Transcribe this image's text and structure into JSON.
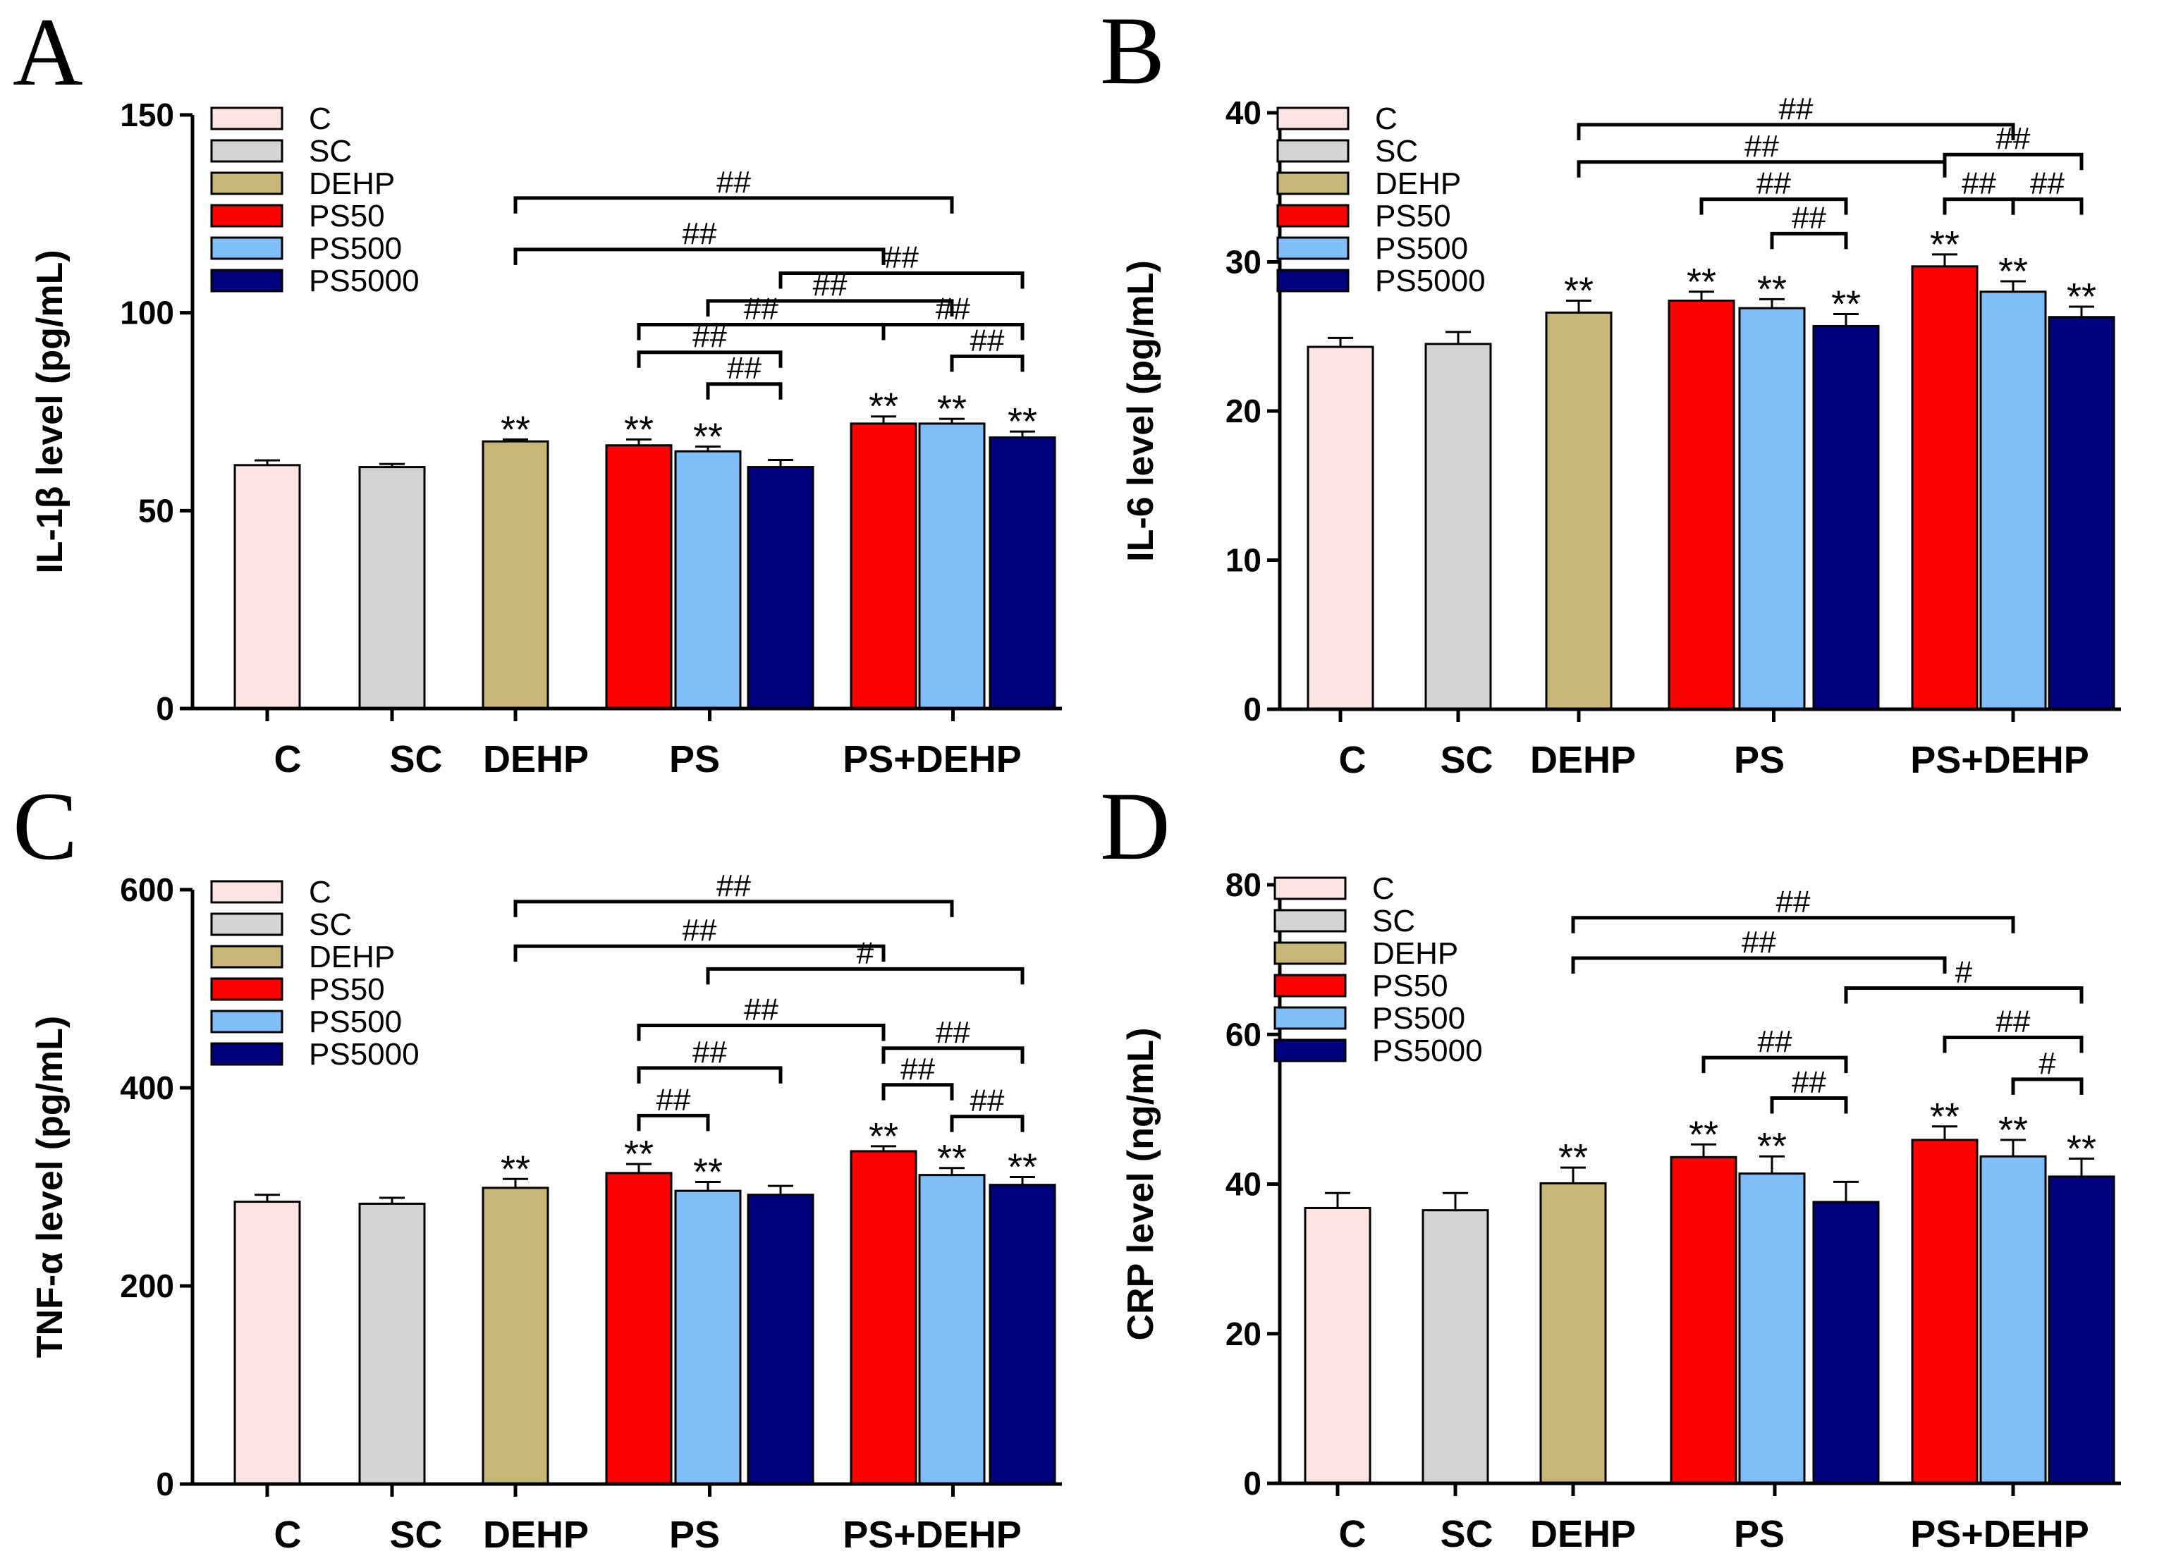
{
  "colors": {
    "C": "#FDE4E4",
    "SC": "#D3D3D3",
    "DEHP": "#C8B679",
    "PS50": "#FF0000",
    "PS500": "#7FBEF8",
    "PS5000": "#00007F"
  },
  "chart_data": [
    {
      "type": "bar",
      "panel": "A",
      "ylabel": "IL-1β level (pg/mL)",
      "ylim": [
        0,
        150
      ],
      "yticks": [
        "0",
        "50",
        "100",
        "150"
      ],
      "series_names": [
        "C",
        "SC",
        "DEHP",
        "PS50",
        "PS500",
        "PS5000"
      ],
      "groups": [
        "C",
        "SC",
        "DEHP",
        "PS",
        "PS+DEHP"
      ],
      "values": [
        61.5,
        61,
        67.5,
        66.5,
        65,
        61,
        72,
        72,
        68.5
      ],
      "errors": [
        1.2,
        0.8,
        0.5,
        1.5,
        1.2,
        1.8,
        1.8,
        1.2,
        1.5
      ],
      "stars": [
        "",
        "",
        "**",
        "**",
        "**",
        "",
        "**",
        "**",
        "**"
      ],
      "brackets": [
        {
          "from": 2,
          "to": 7,
          "level": 129,
          "label": "##"
        },
        {
          "from": 2,
          "to": 6,
          "level": 116,
          "label": "##"
        },
        {
          "from": 5,
          "to": 8,
          "level": 110,
          "label": "##"
        },
        {
          "from": 4,
          "to": 7,
          "level": 103,
          "label": "##"
        },
        {
          "from": 3,
          "to": 6,
          "level": 97,
          "label": "##"
        },
        {
          "from": 6,
          "to": 8,
          "level": 97,
          "label": "##"
        },
        {
          "from": 3,
          "to": 5,
          "level": 90,
          "label": "##"
        },
        {
          "from": 7,
          "to": 8,
          "level": 89,
          "label": "##"
        },
        {
          "from": 4,
          "to": 5,
          "level": 82,
          "label": "##"
        }
      ]
    },
    {
      "type": "bar",
      "panel": "B",
      "ylabel": "IL-6 level (pg/mL)",
      "ylim": [
        0,
        40
      ],
      "yticks": [
        "0",
        "10",
        "20",
        "30",
        "40"
      ],
      "series_names": [
        "C",
        "SC",
        "DEHP",
        "PS50",
        "PS500",
        "PS5000"
      ],
      "groups": [
        "C",
        "SC",
        "DEHP",
        "PS",
        "PS+DEHP"
      ],
      "values": [
        24.3,
        24.5,
        26.6,
        27.4,
        26.9,
        25.7,
        29.7,
        28,
        26.3
      ],
      "errors": [
        0.6,
        0.8,
        0.8,
        0.6,
        0.6,
        0.8,
        0.8,
        0.7,
        0.7
      ],
      "stars": [
        "",
        "",
        "**",
        "**",
        "**",
        "**",
        "**",
        "**",
        "**"
      ],
      "brackets": [
        {
          "from": 2,
          "to": 7,
          "level": 39.2,
          "label": "##"
        },
        {
          "from": 2,
          "to": 6,
          "level": 36.7,
          "label": "##"
        },
        {
          "from": 6,
          "to": 8,
          "level": 37.2,
          "label": "##"
        },
        {
          "from": 3,
          "to": 5,
          "level": 34.2,
          "label": "##"
        },
        {
          "from": 6,
          "to": 7,
          "level": 34.2,
          "label": "##"
        },
        {
          "from": 7,
          "to": 8,
          "level": 34.2,
          "label": "##"
        },
        {
          "from": 4,
          "to": 5,
          "level": 31.9,
          "label": "##"
        }
      ]
    },
    {
      "type": "bar",
      "panel": "C",
      "ylabel": "TNF-α level (pg/mL)",
      "ylim": [
        0,
        600
      ],
      "yticks": [
        "0",
        "200",
        "400",
        "600"
      ],
      "series_names": [
        "C",
        "SC",
        "DEHP",
        "PS50",
        "PS500",
        "PS5000"
      ],
      "groups": [
        "C",
        "SC",
        "DEHP",
        "PS",
        "PS+DEHP"
      ],
      "values": [
        285,
        283,
        299,
        314,
        296,
        292,
        336,
        312,
        302
      ],
      "errors": [
        7,
        6,
        9,
        9,
        9,
        9,
        5,
        7,
        8
      ],
      "stars": [
        "",
        "",
        "**",
        "**",
        "**",
        "",
        "**",
        "**",
        "**"
      ],
      "brackets": [
        {
          "from": 2,
          "to": 7,
          "level": 588,
          "label": "##"
        },
        {
          "from": 2,
          "to": 6,
          "level": 543,
          "label": "##"
        },
        {
          "from": 4,
          "to": 8,
          "level": 520,
          "label": "#"
        },
        {
          "from": 3,
          "to": 6,
          "level": 463,
          "label": "##"
        },
        {
          "from": 6,
          "to": 8,
          "level": 440,
          "label": "##"
        },
        {
          "from": 3,
          "to": 5,
          "level": 420,
          "label": "##"
        },
        {
          "from": 6,
          "to": 7,
          "level": 403,
          "label": "##"
        },
        {
          "from": 3,
          "to": 4,
          "level": 372,
          "label": "##"
        },
        {
          "from": 7,
          "to": 8,
          "level": 371,
          "label": "##"
        }
      ]
    },
    {
      "type": "bar",
      "panel": "D",
      "ylabel": "CRP level (ng/mL)",
      "ylim": [
        0,
        80
      ],
      "yticks": [
        "0",
        "20",
        "40",
        "60",
        "80"
      ],
      "series_names": [
        "C",
        "SC",
        "DEHP",
        "PS50",
        "PS500",
        "PS5000"
      ],
      "groups": [
        "C",
        "SC",
        "DEHP",
        "PS",
        "PS+DEHP"
      ],
      "values": [
        36.8,
        36.5,
        40.1,
        43.6,
        41.4,
        37.6,
        45.9,
        43.7,
        41
      ],
      "errors": [
        2,
        2.3,
        2.1,
        1.7,
        2.3,
        2.7,
        1.8,
        2.2,
        2.4
      ],
      "stars": [
        "",
        "",
        "**",
        "**",
        "**",
        "",
        "**",
        "**",
        "**"
      ],
      "brackets": [
        {
          "from": 2,
          "to": 7,
          "level": 75.6,
          "label": "##"
        },
        {
          "from": 2,
          "to": 6,
          "level": 70.2,
          "label": "##"
        },
        {
          "from": 5,
          "to": 8,
          "level": 66.2,
          "label": "#"
        },
        {
          "from": 6,
          "to": 8,
          "level": 59.6,
          "label": "##"
        },
        {
          "from": 3,
          "to": 5,
          "level": 56.9,
          "label": "##"
        },
        {
          "from": 7,
          "to": 8,
          "level": 54,
          "label": "#"
        },
        {
          "from": 4,
          "to": 5,
          "level": 51.5,
          "label": "##"
        }
      ]
    }
  ]
}
